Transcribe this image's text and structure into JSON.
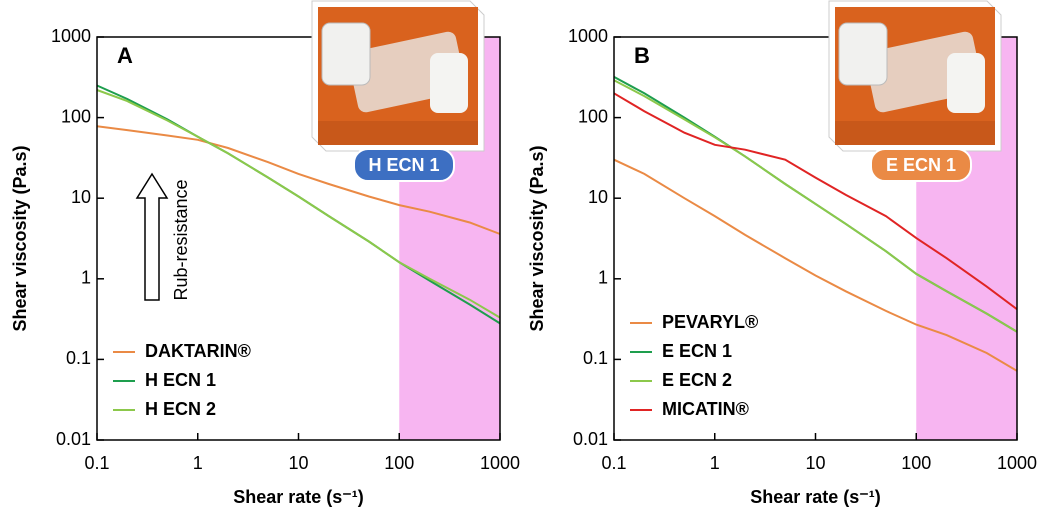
{
  "chart_data": [
    {
      "type": "line",
      "panel_label": "A",
      "log_x": true,
      "log_y": true,
      "xlabel": "Shear rate (s⁻¹)",
      "ylabel": "Shear viscosity (Pa.s)",
      "xlim": [
        0.1,
        1000
      ],
      "ylim": [
        0.01,
        1000
      ],
      "xticks": [
        0.1,
        1,
        10,
        100,
        1000
      ],
      "yticks": [
        0.01,
        0.1,
        1,
        10,
        100,
        1000
      ],
      "shade_x": [
        100,
        1000
      ],
      "shade_color": "#f7b5f1",
      "inset_label": "H ECN 1",
      "inset_color": "#3d6fc2",
      "annotation": "Rub-resistance",
      "legend": "lower left",
      "x": [
        0.1,
        0.2,
        0.5,
        1,
        2,
        5,
        10,
        20,
        50,
        100,
        200,
        500,
        1000
      ],
      "series": [
        {
          "name": "DAKTARIN®",
          "color": "#ea8a45",
          "values": [
            78,
            70,
            60,
            53,
            42,
            28,
            20,
            15,
            10.5,
            8.2,
            6.8,
            5,
            3.6
          ]
        },
        {
          "name": "H ECN 1",
          "color": "#1e9e4e",
          "values": [
            250,
            170,
            95,
            58,
            36,
            18,
            10.5,
            6,
            2.9,
            1.6,
            0.95,
            0.48,
            0.28
          ]
        },
        {
          "name": "H ECN 2",
          "color": "#8cc84b",
          "values": [
            220,
            160,
            92,
            58,
            36,
            18,
            10.5,
            6,
            2.9,
            1.6,
            1.0,
            0.55,
            0.33
          ]
        }
      ]
    },
    {
      "type": "line",
      "panel_label": "B",
      "log_x": true,
      "log_y": true,
      "xlabel": "Shear rate (s⁻¹)",
      "ylabel": "Shear viscosity (Pa.s)",
      "xlim": [
        0.1,
        1000
      ],
      "ylim": [
        0.01,
        1000
      ],
      "xticks": [
        0.1,
        1,
        10,
        100,
        1000
      ],
      "yticks": [
        0.01,
        0.1,
        1,
        10,
        100,
        1000
      ],
      "shade_x": [
        100,
        1000
      ],
      "shade_color": "#f7b5f1",
      "inset_label": "E ECN 1",
      "inset_color": "#ea8a45",
      "legend": "lower left",
      "x": [
        0.1,
        0.2,
        0.5,
        1,
        2,
        5,
        10,
        20,
        50,
        100,
        200,
        500,
        1000
      ],
      "series": [
        {
          "name": "PEVARYL®",
          "color": "#ea8a45",
          "values": [
            30,
            20,
            10,
            6,
            3.5,
            1.8,
            1.1,
            0.7,
            0.4,
            0.27,
            0.2,
            0.12,
            0.072
          ]
        },
        {
          "name": "E ECN 1",
          "color": "#1e9e4e",
          "values": [
            320,
            200,
            100,
            58,
            33,
            15,
            8.5,
            4.8,
            2.2,
            1.15,
            0.7,
            0.37,
            0.22
          ]
        },
        {
          "name": "E ECN 2",
          "color": "#8cc84b",
          "values": [
            290,
            185,
            95,
            57,
            33,
            15,
            8.5,
            4.8,
            2.2,
            1.15,
            0.7,
            0.37,
            0.22
          ]
        },
        {
          "name": "MICATIN®",
          "color": "#e02424",
          "values": [
            200,
            120,
            65,
            46,
            40,
            30,
            18,
            11,
            6,
            3.2,
            1.8,
            0.8,
            0.42
          ]
        }
      ]
    }
  ]
}
